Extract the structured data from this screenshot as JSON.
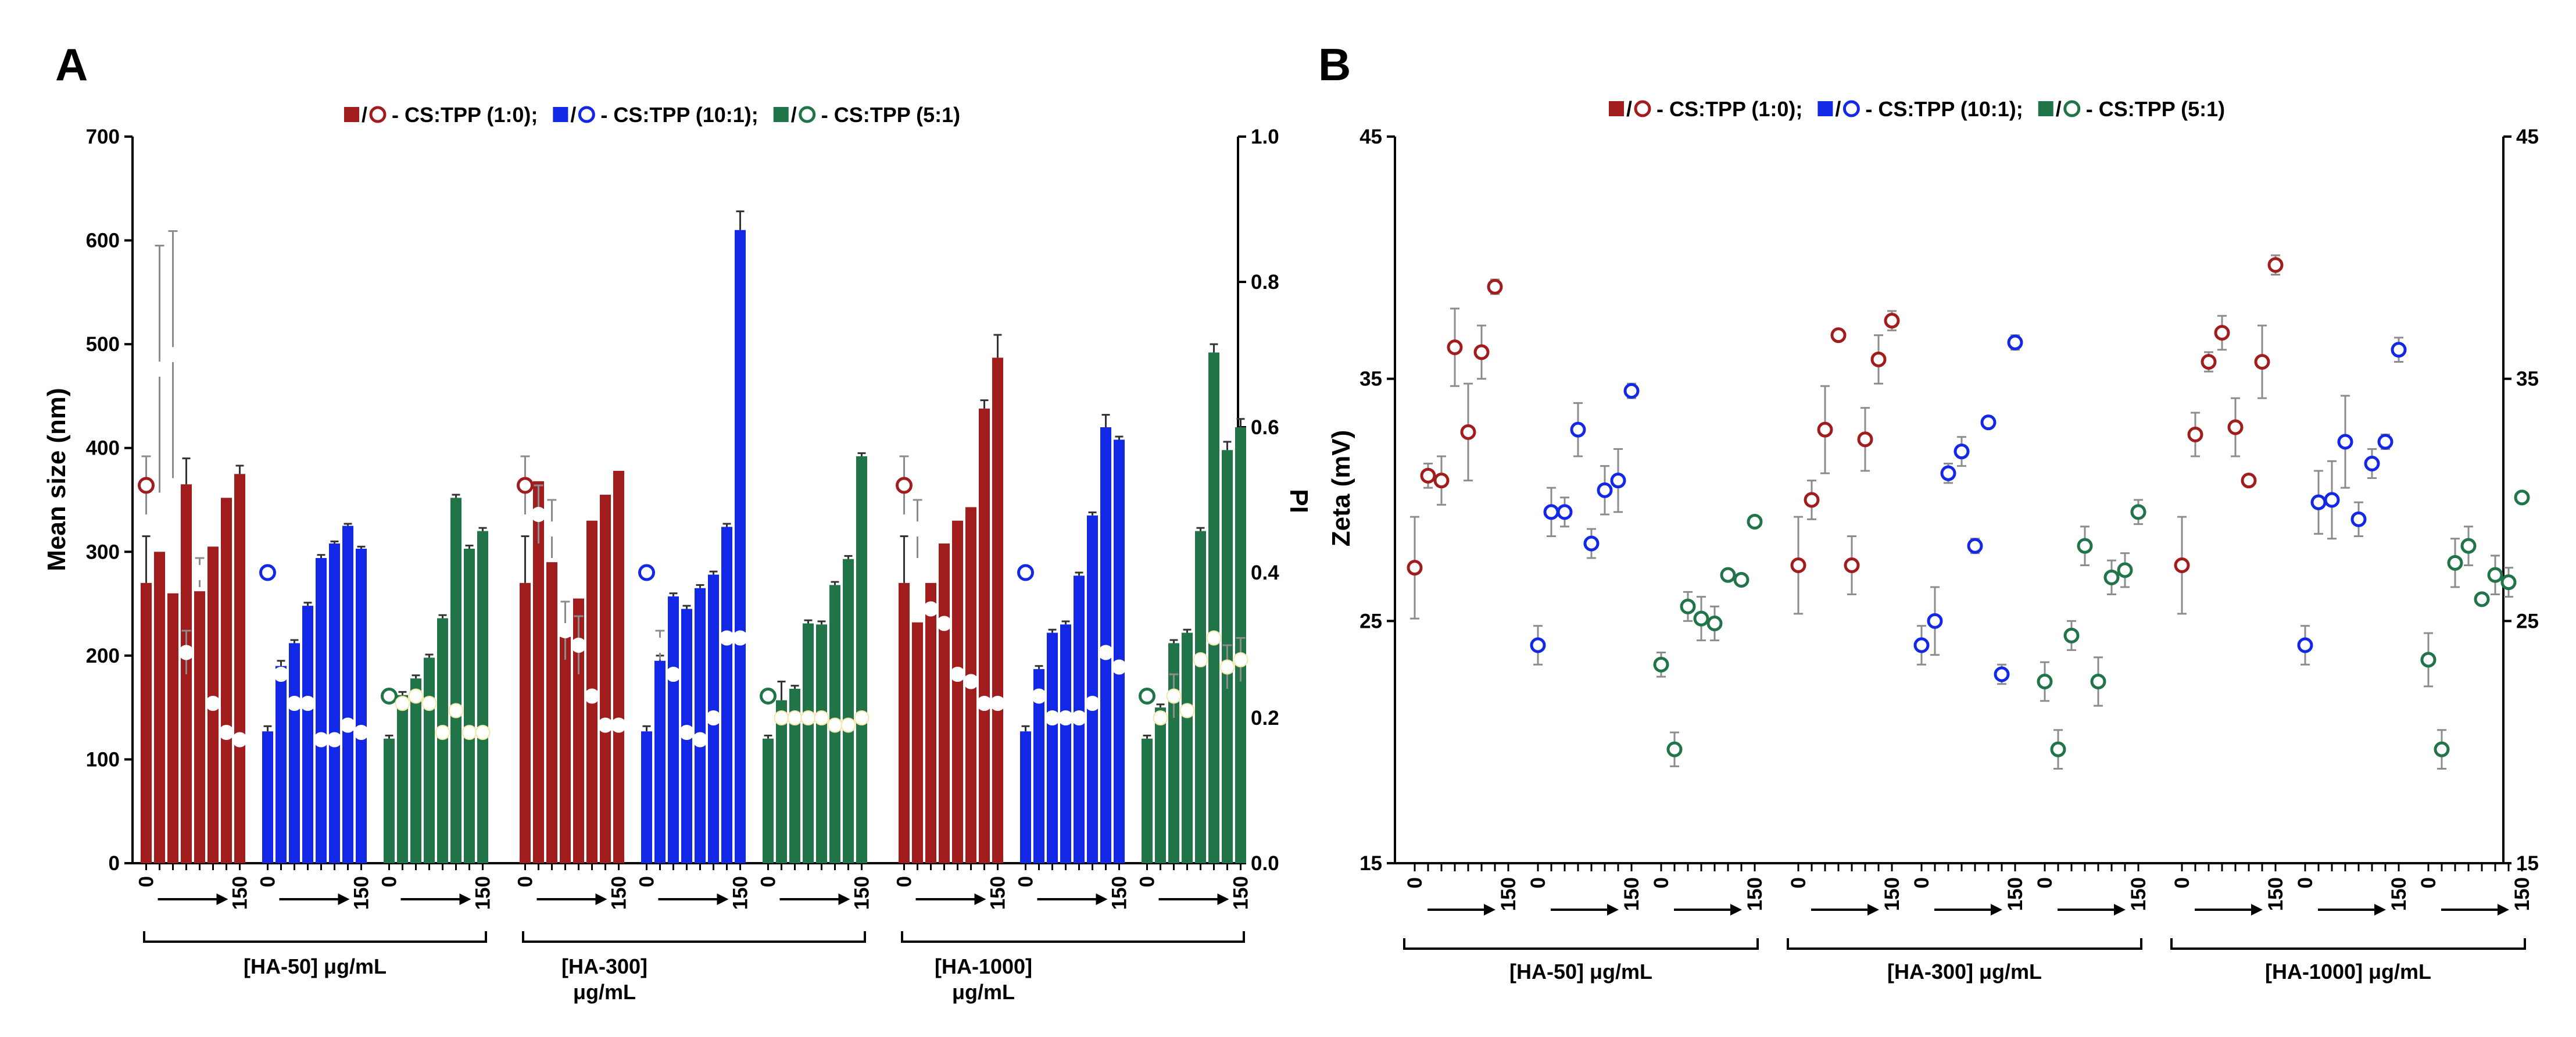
{
  "colors": {
    "red": "#A11D1D",
    "blue": "#1228E6",
    "green": "#217348",
    "axis": "#000000",
    "errbar": "#8c8c8c"
  },
  "panel_a": {
    "letter": "A",
    "legend": [
      {
        "color": "#A11D1D",
        "text": "- CS:TPP (1:0);"
      },
      {
        "color": "#1228E6",
        "text": "- CS:TPP (10:1);"
      },
      {
        "color": "#217348",
        "text": "- CS:TPP (5:1)"
      }
    ]
  },
  "panel_b": {
    "letter": "B",
    "legend": [
      {
        "color": "#A11D1D",
        "text": "- CS:TPP (1:0);"
      },
      {
        "color": "#1228E6",
        "text": "- CS:TPP (10:1);"
      },
      {
        "color": "#217348",
        "text": "- CS:TPP (5:1)"
      }
    ]
  },
  "chart_data": [
    {
      "type": "bar",
      "panel": "A",
      "ylabel": "Mean size (nm)",
      "y2label": "PI",
      "ylim": [
        0,
        700
      ],
      "y2lim": [
        0,
        1.0
      ],
      "yticks": [
        "0",
        "100",
        "200",
        "300",
        "400",
        "500",
        "600",
        "700"
      ],
      "y2ticks": [
        "0.0",
        "0.2",
        "0.4",
        "0.6",
        "0.8",
        "1.0"
      ],
      "x_ticks_start": "0",
      "x_ticks_end": "150",
      "groups": [
        {
          "label_lines": [
            "[HA-50] μg/mL"
          ]
        },
        {
          "label_lines": [
            "[HA-300]",
            "μg/mL"
          ]
        },
        {
          "label_lines": [
            "[HA-1000]",
            "μg/mL"
          ]
        }
      ],
      "series": [
        {
          "name": "CS:TPP (1:0)",
          "color": "#A11D1D",
          "size": [
            [
              270,
              300,
              260,
              365,
              262,
              305,
              352,
              375
            ],
            [
              270,
              368,
              290,
              218,
              255,
              330,
              355,
              378
            ],
            [
              270,
              232,
              270,
              308,
              330,
              343,
              438,
              487
            ]
          ],
          "size_err": [
            [
              45,
              0,
              0,
              25,
              0,
              0,
              0,
              8
            ],
            [
              45,
              0,
              0,
              0,
              0,
              0,
              0,
              0
            ],
            [
              45,
              0,
              0,
              0,
              0,
              0,
              8,
              22
            ]
          ],
          "pi": [
            [
              0.52,
              0.68,
              0.7,
              0.29,
              0.4,
              0.22,
              0.18,
              0.17
            ],
            [
              0.52,
              0.48,
              0.46,
              0.32,
              0.3,
              0.23,
              0.19,
              0.19
            ],
            [
              0.52,
              0.46,
              0.35,
              0.33,
              0.26,
              0.25,
              0.22,
              0.22
            ]
          ],
          "pi_err": [
            [
              0.04,
              0.17,
              0.17,
              0.03,
              0.02,
              0,
              0,
              0
            ],
            [
              0.04,
              0.04,
              0.04,
              0.04,
              0.04,
              0,
              0,
              0
            ],
            [
              0.04,
              0.04,
              0,
              0,
              0,
              0,
              0,
              0
            ]
          ]
        },
        {
          "name": "CS:TPP (10:1)",
          "color": "#1228E6",
          "size": [
            [
              127,
              190,
              212,
              248,
              294,
              308,
              325,
              303
            ],
            [
              127,
              195,
              257,
              245,
              265,
              278,
              324,
              610
            ],
            [
              127,
              187,
              222,
              230,
              277,
              335,
              420,
              408
            ]
          ],
          "size_err": [
            [
              5,
              5,
              3,
              3,
              3,
              2,
              2,
              2
            ],
            [
              5,
              5,
              3,
              3,
              3,
              3,
              3,
              18
            ],
            [
              5,
              3,
              3,
              3,
              3,
              3,
              12,
              3
            ]
          ],
          "pi": [
            [
              0.4,
              0.26,
              0.22,
              0.22,
              0.17,
              0.17,
              0.19,
              0.18
            ],
            [
              0.4,
              0.3,
              0.26,
              0.18,
              0.17,
              0.2,
              0.31,
              0.31
            ],
            [
              0.4,
              0.23,
              0.2,
              0.2,
              0.2,
              0.22,
              0.29,
              0.27
            ]
          ],
          "pi_err": [
            [
              0.01,
              0.01,
              0.01,
              0.01,
              0.01,
              0.01,
              0.01,
              0.01
            ],
            [
              0.01,
              0.02,
              0.01,
              0.01,
              0.01,
              0.01,
              0.01,
              0.01
            ],
            [
              0.01,
              0.01,
              0.01,
              0.01,
              0.01,
              0.01,
              0.01,
              0.01
            ]
          ]
        },
        {
          "name": "CS:TPP (5:1)",
          "color": "#217348",
          "size": [
            [
              120,
              162,
              178,
              198,
              236,
              352,
              303,
              320
            ],
            [
              120,
              157,
              168,
              231,
              230,
              268,
              293,
              392
            ],
            [
              120,
              150,
              212,
              222,
              320,
              492,
              398,
              420
            ]
          ],
          "size_err": [
            [
              3,
              3,
              3,
              3,
              3,
              3,
              3,
              3
            ],
            [
              3,
              18,
              3,
              3,
              3,
              3,
              3,
              3
            ],
            [
              3,
              3,
              3,
              3,
              3,
              8,
              8,
              8
            ]
          ],
          "pi": [
            [
              0.23,
              0.22,
              0.23,
              0.22,
              0.18,
              0.21,
              0.18,
              0.18
            ],
            [
              0.23,
              0.2,
              0.2,
              0.2,
              0.2,
              0.19,
              0.19,
              0.2
            ],
            [
              0.23,
              0.2,
              0.23,
              0.21,
              0.28,
              0.31,
              0.27,
              0.28
            ]
          ],
          "pi_err": [
            [
              0.01,
              0.01,
              0.01,
              0.01,
              0.01,
              0.01,
              0.01,
              0.01
            ],
            [
              0.01,
              0.01,
              0.01,
              0.01,
              0.01,
              0.01,
              0.01,
              0.01
            ],
            [
              0.01,
              0.01,
              0.03,
              0.01,
              0.01,
              0.01,
              0.03,
              0.03
            ]
          ]
        }
      ]
    },
    {
      "type": "scatter",
      "panel": "B",
      "ylabel": "Zeta (mV)",
      "ylim": [
        15,
        45
      ],
      "yticks": [
        "15",
        "25",
        "35",
        "45"
      ],
      "y2ticks": [
        "15",
        "25",
        "35",
        "45"
      ],
      "x_ticks_start": "0",
      "x_ticks_end": "150",
      "groups": [
        {
          "label_lines": [
            "[HA-50] μg/mL"
          ]
        },
        {
          "label_lines": [
            "[HA-300] μg/mL"
          ]
        },
        {
          "label_lines": [
            "[HA-1000] μg/mL"
          ]
        }
      ],
      "series": [
        {
          "name": "CS:TPP (1:0)",
          "color": "#A11D1D",
          "values": [
            [
              27.2,
              31.0,
              30.8,
              36.3,
              32.8,
              36.1,
              38.8
            ],
            [
              27.3,
              30.0,
              32.9,
              36.8,
              27.3,
              32.5,
              35.8,
              37.4
            ],
            [
              27.3,
              32.7,
              35.7,
              36.9,
              33.0,
              30.8,
              35.7,
              39.7
            ]
          ],
          "err": [
            [
              2.1,
              0.5,
              1.0,
              1.6,
              2.0,
              1.1,
              0.3
            ],
            [
              2.0,
              0.8,
              1.8,
              0.2,
              1.2,
              1.3,
              1.0,
              0.4
            ],
            [
              2.0,
              0.9,
              0.4,
              0.7,
              1.2,
              0.2,
              1.5,
              0.4
            ]
          ]
        },
        {
          "name": "CS:TPP (10:1)",
          "color": "#1228E6",
          "values": [
            [
              24.0,
              29.5,
              29.5,
              32.9,
              28.2,
              30.4,
              30.8,
              34.5
            ],
            [
              24.0,
              25.0,
              31.1,
              32.0,
              28.1,
              33.2,
              22.8,
              36.5
            ],
            [
              24.0,
              29.9,
              30.0,
              32.4,
              29.2,
              31.5,
              32.4,
              36.2
            ]
          ],
          "err": [
            [
              0.8,
              1.0,
              0.6,
              1.1,
              0.6,
              1.0,
              1.3,
              0.3
            ],
            [
              0.8,
              1.4,
              0.4,
              0.6,
              0.3,
              0.2,
              0.4,
              0.3
            ],
            [
              0.8,
              1.3,
              1.6,
              1.9,
              0.7,
              0.6,
              0.3,
              0.5
            ]
          ]
        },
        {
          "name": "CS:TPP (5:1)",
          "color": "#217348",
          "values": [
            [
              23.2,
              19.7,
              25.6,
              25.1,
              24.9,
              26.9,
              26.7,
              29.1
            ],
            [
              22.5,
              19.7,
              24.4,
              28.1,
              22.5,
              26.8,
              27.1,
              29.5
            ],
            [
              23.4,
              19.7,
              27.4,
              28.1,
              25.9,
              26.9,
              26.6,
              30.1
            ]
          ],
          "err": [
            [
              0.5,
              0.7,
              0.6,
              0.9,
              0.7,
              0.2,
              0.2,
              0.2
            ],
            [
              0.8,
              0.8,
              0.6,
              0.8,
              1.0,
              0.7,
              0.7,
              0.5
            ],
            [
              1.1,
              0.8,
              1.0,
              0.8,
              0.2,
              0.8,
              0.6,
              0.2
            ]
          ]
        }
      ]
    }
  ]
}
